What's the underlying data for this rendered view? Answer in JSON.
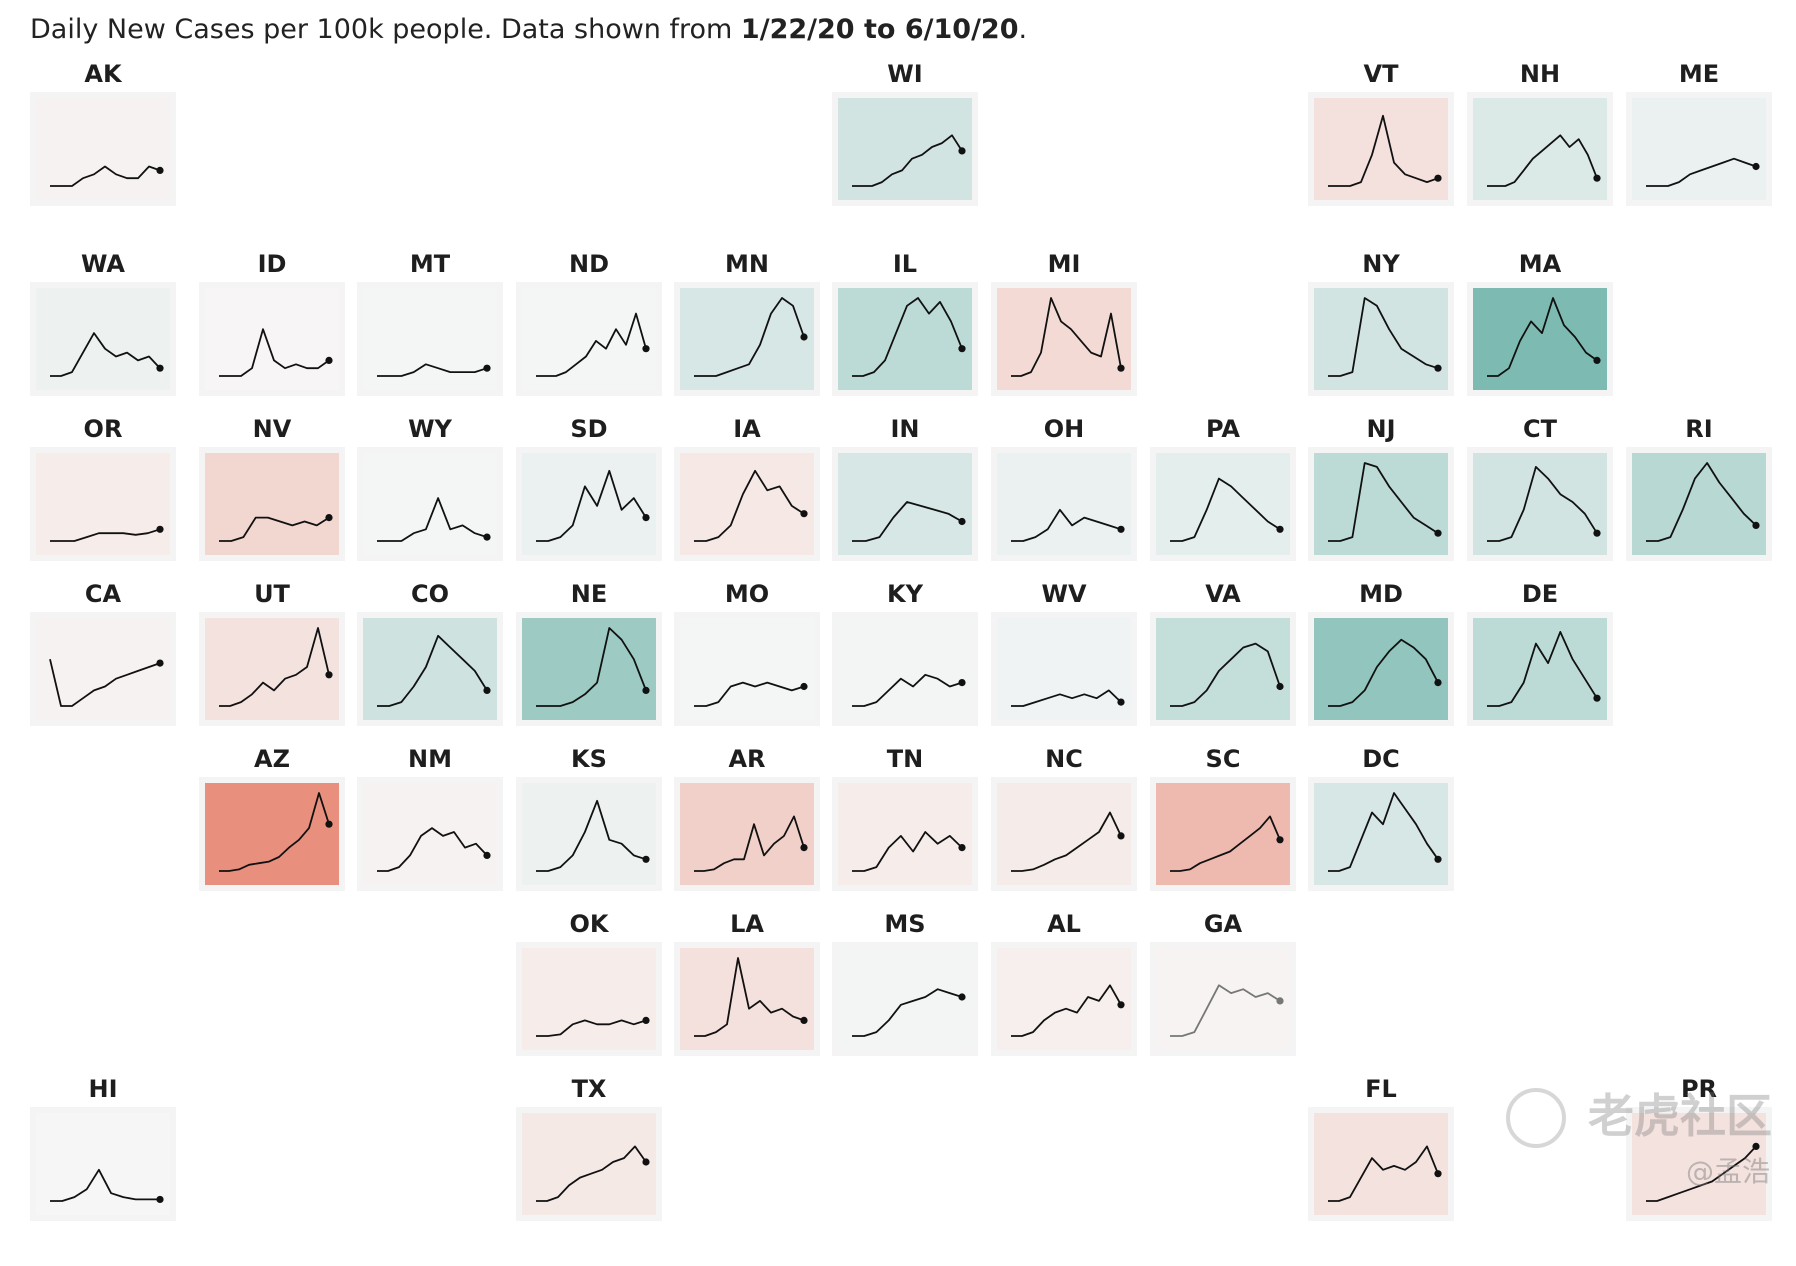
{
  "title": {
    "prefix": "Daily New Cases per 100k people. Data shown from ",
    "from": "1/22/20",
    "mid": " to ",
    "to": "6/10/20",
    "suffix": "."
  },
  "watermark": {
    "text": "老虎社区",
    "user": "@孟浩"
  },
  "colors": {
    "green_dark": "#77b8ae",
    "red_dark": "#e8907d",
    "neutral": "#f7f7f7"
  },
  "chart_data": {
    "type": "small-multiples-line",
    "layout": "tile-grid map of US states",
    "x_start": "1/22/20",
    "x_end": "6/10/20",
    "states": [
      {
        "code": "AK",
        "row": 0,
        "col": 0,
        "tone": -0.05,
        "values": [
          0,
          0,
          0,
          0.1,
          0.15,
          0.25,
          0.15,
          0.1,
          0.1,
          0.25,
          0.2
        ]
      },
      {
        "code": "WI",
        "row": 0,
        "col": 5,
        "tone": 0.3,
        "values": [
          0,
          0,
          0,
          0.05,
          0.15,
          0.2,
          0.35,
          0.4,
          0.5,
          0.55,
          0.65,
          0.45
        ]
      },
      {
        "code": "VT",
        "row": 0,
        "col": 8,
        "tone": -0.22,
        "values": [
          0,
          0,
          0,
          0.05,
          0.4,
          0.9,
          0.3,
          0.15,
          0.1,
          0.05,
          0.1
        ]
      },
      {
        "code": "NH",
        "row": 0,
        "col": 9,
        "tone": 0.22,
        "values": [
          0,
          0,
          0,
          0.05,
          0.2,
          0.35,
          0.45,
          0.55,
          0.65,
          0.5,
          0.6,
          0.4,
          0.1
        ]
      },
      {
        "code": "ME",
        "row": 0,
        "col": 10,
        "tone": 0.1,
        "values": [
          0,
          0,
          0,
          0.05,
          0.15,
          0.2,
          0.25,
          0.3,
          0.35,
          0.3,
          0.25
        ]
      },
      {
        "code": "WA",
        "row": 1,
        "col": 0,
        "tone": 0.08,
        "values": [
          0,
          0,
          0.05,
          0.3,
          0.55,
          0.35,
          0.25,
          0.3,
          0.2,
          0.25,
          0.1
        ]
      },
      {
        "code": "ID",
        "row": 1,
        "col": 1,
        "tone": -0.02,
        "values": [
          0,
          0,
          0,
          0.1,
          0.6,
          0.2,
          0.1,
          0.15,
          0.1,
          0.1,
          0.2
        ]
      },
      {
        "code": "MT",
        "row": 1,
        "col": 2,
        "tone": 0.02,
        "values": [
          0,
          0,
          0,
          0.05,
          0.15,
          0.1,
          0.05,
          0.05,
          0.05,
          0.1
        ]
      },
      {
        "code": "ND",
        "row": 1,
        "col": 3,
        "tone": 0.02,
        "values": [
          0,
          0,
          0,
          0.05,
          0.15,
          0.25,
          0.45,
          0.35,
          0.6,
          0.4,
          0.8,
          0.35
        ]
      },
      {
        "code": "MN",
        "row": 1,
        "col": 4,
        "tone": 0.25,
        "values": [
          0,
          0,
          0,
          0.05,
          0.1,
          0.15,
          0.4,
          0.8,
          1,
          0.9,
          0.5
        ]
      },
      {
        "code": "IL",
        "row": 1,
        "col": 5,
        "tone": 0.45,
        "values": [
          0,
          0,
          0.05,
          0.2,
          0.55,
          0.9,
          1,
          0.8,
          0.95,
          0.7,
          0.35
        ]
      },
      {
        "code": "MI",
        "row": 1,
        "col": 6,
        "tone": -0.28,
        "values": [
          0,
          0,
          0.05,
          0.3,
          1,
          0.7,
          0.6,
          0.45,
          0.3,
          0.25,
          0.8,
          0.1
        ]
      },
      {
        "code": "NY",
        "row": 1,
        "col": 8,
        "tone": 0.3,
        "values": [
          0,
          0,
          0.05,
          1,
          0.9,
          0.6,
          0.35,
          0.25,
          0.15,
          0.1
        ]
      },
      {
        "code": "MA",
        "row": 1,
        "col": 9,
        "tone": 0.95,
        "values": [
          0,
          0,
          0.1,
          0.45,
          0.7,
          0.55,
          1,
          0.65,
          0.5,
          0.3,
          0.2
        ]
      },
      {
        "code": "OR",
        "row": 2,
        "col": 0,
        "tone": -0.1,
        "values": [
          0,
          0,
          0,
          0.05,
          0.1,
          0.1,
          0.1,
          0.08,
          0.1,
          0.15
        ]
      },
      {
        "code": "NV",
        "row": 2,
        "col": 1,
        "tone": -0.32,
        "values": [
          0,
          0,
          0.05,
          0.3,
          0.3,
          0.25,
          0.2,
          0.25,
          0.2,
          0.3
        ]
      },
      {
        "code": "WY",
        "row": 2,
        "col": 2,
        "tone": 0.02,
        "values": [
          0,
          0,
          0,
          0.1,
          0.15,
          0.55,
          0.15,
          0.2,
          0.1,
          0.05
        ]
      },
      {
        "code": "SD",
        "row": 2,
        "col": 3,
        "tone": 0.1,
        "values": [
          0,
          0,
          0.05,
          0.2,
          0.7,
          0.45,
          0.9,
          0.4,
          0.55,
          0.3
        ]
      },
      {
        "code": "IA",
        "row": 2,
        "col": 4,
        "tone": -0.15,
        "values": [
          0,
          0,
          0.05,
          0.2,
          0.6,
          0.9,
          0.65,
          0.7,
          0.45,
          0.35
        ]
      },
      {
        "code": "IN",
        "row": 2,
        "col": 5,
        "tone": 0.25,
        "values": [
          0,
          0,
          0.05,
          0.3,
          0.5,
          0.45,
          0.4,
          0.35,
          0.25
        ]
      },
      {
        "code": "OH",
        "row": 2,
        "col": 6,
        "tone": 0.1,
        "values": [
          0,
          0,
          0.05,
          0.15,
          0.4,
          0.2,
          0.3,
          0.25,
          0.2,
          0.15
        ]
      },
      {
        "code": "PA",
        "row": 2,
        "col": 7,
        "tone": 0.15,
        "values": [
          0,
          0,
          0.05,
          0.4,
          0.8,
          0.7,
          0.55,
          0.4,
          0.25,
          0.15
        ]
      },
      {
        "code": "NJ",
        "row": 2,
        "col": 8,
        "tone": 0.45,
        "values": [
          0,
          0,
          0.05,
          1,
          0.95,
          0.7,
          0.5,
          0.3,
          0.2,
          0.1
        ]
      },
      {
        "code": "CT",
        "row": 2,
        "col": 9,
        "tone": 0.3,
        "values": [
          0,
          0,
          0.05,
          0.4,
          0.95,
          0.8,
          0.6,
          0.5,
          0.35,
          0.1
        ]
      },
      {
        "code": "RI",
        "row": 2,
        "col": 10,
        "tone": 0.5,
        "values": [
          0,
          0,
          0.05,
          0.4,
          0.8,
          1,
          0.75,
          0.55,
          0.35,
          0.2
        ]
      },
      {
        "code": "CA",
        "row": 3,
        "col": 0,
        "tone": -0.05,
        "values": [
          0.6,
          0,
          0,
          0.1,
          0.2,
          0.25,
          0.35,
          0.4,
          0.45,
          0.5,
          0.55
        ]
      },
      {
        "code": "UT",
        "row": 3,
        "col": 1,
        "tone": -0.2,
        "values": [
          0,
          0,
          0.05,
          0.15,
          0.3,
          0.2,
          0.35,
          0.4,
          0.5,
          1,
          0.4
        ]
      },
      {
        "code": "CO",
        "row": 3,
        "col": 2,
        "tone": 0.32,
        "values": [
          0,
          0,
          0.05,
          0.25,
          0.5,
          0.9,
          0.75,
          0.6,
          0.45,
          0.2
        ]
      },
      {
        "code": "NE",
        "row": 3,
        "col": 3,
        "tone": 0.7,
        "values": [
          0,
          0,
          0,
          0.05,
          0.15,
          0.3,
          1,
          0.85,
          0.6,
          0.2
        ]
      },
      {
        "code": "MO",
        "row": 3,
        "col": 4,
        "tone": 0.02,
        "values": [
          0,
          0,
          0.05,
          0.25,
          0.3,
          0.25,
          0.3,
          0.25,
          0.2,
          0.25
        ]
      },
      {
        "code": "KY",
        "row": 3,
        "col": 5,
        "tone": 0.03,
        "values": [
          0,
          0,
          0.05,
          0.2,
          0.35,
          0.25,
          0.4,
          0.35,
          0.25,
          0.3
        ]
      },
      {
        "code": "WV",
        "row": 3,
        "col": 6,
        "tone": 0.06,
        "values": [
          0,
          0,
          0.05,
          0.1,
          0.15,
          0.1,
          0.15,
          0.1,
          0.2,
          0.05
        ]
      },
      {
        "code": "VA",
        "row": 3,
        "col": 7,
        "tone": 0.4,
        "values": [
          0,
          0,
          0.05,
          0.2,
          0.45,
          0.6,
          0.75,
          0.8,
          0.7,
          0.25
        ]
      },
      {
        "code": "MD",
        "row": 3,
        "col": 8,
        "tone": 0.8,
        "values": [
          0,
          0,
          0.05,
          0.2,
          0.5,
          0.7,
          0.85,
          0.75,
          0.6,
          0.3
        ]
      },
      {
        "code": "DE",
        "row": 3,
        "col": 9,
        "tone": 0.45,
        "values": [
          0,
          0,
          0.05,
          0.3,
          0.8,
          0.55,
          0.95,
          0.6,
          0.35,
          0.1
        ]
      },
      {
        "code": "AZ",
        "row": 4,
        "col": 1,
        "tone": -1,
        "values": [
          0,
          0,
          0.02,
          0.08,
          0.1,
          0.12,
          0.18,
          0.3,
          0.4,
          0.55,
          1,
          0.6
        ]
      },
      {
        "code": "NM",
        "row": 4,
        "col": 2,
        "tone": -0.05,
        "values": [
          0,
          0,
          0.05,
          0.2,
          0.45,
          0.55,
          0.45,
          0.5,
          0.3,
          0.35,
          0.2
        ]
      },
      {
        "code": "KS",
        "row": 4,
        "col": 3,
        "tone": 0.08,
        "values": [
          0,
          0,
          0.05,
          0.2,
          0.5,
          0.9,
          0.4,
          0.35,
          0.2,
          0.15
        ]
      },
      {
        "code": "AR",
        "row": 4,
        "col": 4,
        "tone": -0.38,
        "values": [
          0,
          0,
          0.02,
          0.1,
          0.15,
          0.15,
          0.6,
          0.2,
          0.35,
          0.45,
          0.7,
          0.3
        ]
      },
      {
        "code": "TN",
        "row": 4,
        "col": 5,
        "tone": -0.1,
        "values": [
          0,
          0,
          0.05,
          0.3,
          0.45,
          0.25,
          0.5,
          0.35,
          0.45,
          0.3
        ]
      },
      {
        "code": "NC",
        "row": 4,
        "col": 6,
        "tone": -0.12,
        "values": [
          0,
          0,
          0.02,
          0.08,
          0.15,
          0.2,
          0.3,
          0.4,
          0.5,
          0.75,
          0.45
        ]
      },
      {
        "code": "SC",
        "row": 4,
        "col": 7,
        "tone": -0.6,
        "values": [
          0,
          0,
          0.02,
          0.1,
          0.15,
          0.2,
          0.25,
          0.35,
          0.45,
          0.55,
          0.7,
          0.4
        ]
      },
      {
        "code": "DC",
        "row": 4,
        "col": 8,
        "tone": 0.25,
        "values": [
          0,
          0,
          0.05,
          0.4,
          0.75,
          0.6,
          1,
          0.8,
          0.6,
          0.35,
          0.15
        ]
      },
      {
        "code": "OK",
        "row": 5,
        "col": 3,
        "tone": -0.1,
        "values": [
          0,
          0,
          0.02,
          0.15,
          0.2,
          0.15,
          0.15,
          0.2,
          0.15,
          0.2
        ]
      },
      {
        "code": "LA",
        "row": 5,
        "col": 4,
        "tone": -0.22,
        "values": [
          0,
          0,
          0.05,
          0.15,
          1,
          0.35,
          0.45,
          0.3,
          0.35,
          0.25,
          0.2
        ]
      },
      {
        "code": "MS",
        "row": 5,
        "col": 5,
        "tone": 0.03,
        "values": [
          0,
          0,
          0.05,
          0.2,
          0.4,
          0.45,
          0.5,
          0.6,
          0.55,
          0.5
        ]
      },
      {
        "code": "AL",
        "row": 5,
        "col": 6,
        "tone": -0.08,
        "values": [
          0,
          0,
          0.05,
          0.2,
          0.3,
          0.35,
          0.3,
          0.5,
          0.45,
          0.65,
          0.4
        ]
      },
      {
        "code": "GA",
        "row": 5,
        "col": 7,
        "tone": -0.04,
        "gray": true,
        "values": [
          0,
          0,
          0.05,
          0.35,
          0.65,
          0.55,
          0.6,
          0.5,
          0.55,
          0.45
        ]
      },
      {
        "code": "HI",
        "row": 6,
        "col": 0,
        "tone": 0.01,
        "values": [
          0,
          0,
          0.05,
          0.15,
          0.4,
          0.1,
          0.05,
          0.02,
          0.02,
          0.02
        ]
      },
      {
        "code": "TX",
        "row": 6,
        "col": 3,
        "tone": -0.14,
        "values": [
          0,
          0,
          0.05,
          0.2,
          0.3,
          0.35,
          0.4,
          0.5,
          0.55,
          0.7,
          0.5
        ]
      },
      {
        "code": "FL",
        "row": 6,
        "col": 8,
        "tone": -0.2,
        "values": [
          0,
          0,
          0.05,
          0.3,
          0.55,
          0.4,
          0.45,
          0.4,
          0.5,
          0.7,
          0.35
        ]
      },
      {
        "code": "PR",
        "row": 6,
        "col": 10,
        "tone": -0.2,
        "values": [
          0,
          0,
          0.05,
          0.1,
          0.15,
          0.2,
          0.25,
          0.35,
          0.45,
          0.55,
          0.7
        ]
      }
    ]
  }
}
